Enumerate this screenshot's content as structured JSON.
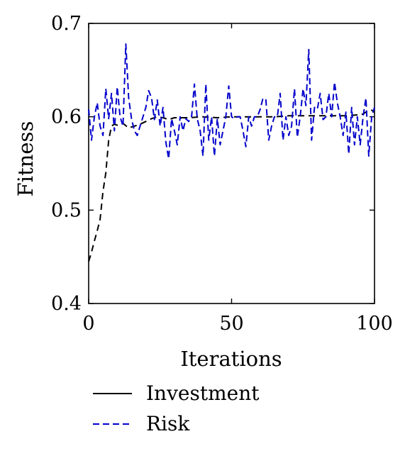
{
  "chart_data": {
    "type": "line",
    "xlabel": "Iterations",
    "ylabel": "Fitness",
    "xlim": [
      0,
      100
    ],
    "ylim": [
      0.4,
      0.7
    ],
    "xticks": [
      0,
      50,
      100
    ],
    "yticks": [
      0.4,
      0.5,
      0.6,
      0.7
    ],
    "xtick_labels": [
      "0",
      "50",
      "100"
    ],
    "ytick_labels": [
      "0.4",
      "0.5",
      "0.6",
      "0.7"
    ],
    "grid": false,
    "legend_position": "bottom",
    "series": [
      {
        "name": "Investment",
        "color": "#000000",
        "x": [
          0,
          1,
          2,
          3,
          4,
          5,
          6,
          7,
          8,
          9,
          10,
          12,
          14,
          16,
          18,
          20,
          22,
          24,
          26,
          28,
          30,
          35,
          40,
          45,
          50,
          55,
          60,
          65,
          70,
          75,
          80,
          85,
          90,
          94,
          95,
          96,
          97,
          98,
          99,
          100
        ],
        "y": [
          0.445,
          0.455,
          0.467,
          0.478,
          0.49,
          0.52,
          0.54,
          0.575,
          0.59,
          0.592,
          0.591,
          0.593,
          0.588,
          0.59,
          0.592,
          0.595,
          0.598,
          0.6,
          0.599,
          0.597,
          0.599,
          0.599,
          0.6,
          0.599,
          0.6,
          0.6,
          0.6,
          0.6,
          0.601,
          0.601,
          0.601,
          0.601,
          0.601,
          0.602,
          0.602,
          0.603,
          0.605,
          0.607,
          0.607,
          0.605
        ]
      },
      {
        "name": "Risk",
        "color": "#0000cc",
        "x": [
          0,
          1,
          2,
          3,
          4,
          5,
          6,
          7,
          8,
          9,
          10,
          11,
          12,
          13,
          14,
          15,
          16,
          17,
          18,
          19,
          20,
          21,
          22,
          23,
          24,
          25,
          26,
          27,
          28,
          29,
          30,
          31,
          32,
          33,
          34,
          35,
          36,
          37,
          38,
          39,
          40,
          41,
          42,
          43,
          44,
          45,
          46,
          47,
          48,
          49,
          50,
          51,
          52,
          53,
          54,
          55,
          56,
          57,
          58,
          59,
          60,
          61,
          62,
          63,
          64,
          65,
          66,
          67,
          68,
          69,
          70,
          71,
          72,
          73,
          74,
          75,
          76,
          77,
          78,
          79,
          80,
          81,
          82,
          83,
          84,
          85,
          86,
          87,
          88,
          89,
          90,
          91,
          92,
          93,
          94,
          95,
          96,
          97,
          98,
          99,
          100
        ],
        "y": [
          0.608,
          0.575,
          0.6,
          0.615,
          0.59,
          0.58,
          0.63,
          0.598,
          0.625,
          0.585,
          0.632,
          0.6,
          0.59,
          0.678,
          0.62,
          0.598,
          0.585,
          0.58,
          0.59,
          0.6,
          0.61,
          0.628,
          0.62,
          0.597,
          0.618,
          0.59,
          0.61,
          0.573,
          0.555,
          0.598,
          0.585,
          0.57,
          0.6,
          0.585,
          0.598,
          0.595,
          0.6,
          0.635,
          0.598,
          0.585,
          0.558,
          0.635,
          0.575,
          0.6,
          0.558,
          0.598,
          0.57,
          0.585,
          0.6,
          0.633,
          0.6,
          0.598,
          0.6,
          0.6,
          0.585,
          0.568,
          0.6,
          0.59,
          0.6,
          0.6,
          0.608,
          0.62,
          0.618,
          0.575,
          0.59,
          0.6,
          0.6,
          0.625,
          0.575,
          0.6,
          0.58,
          0.59,
          0.63,
          0.578,
          0.6,
          0.63,
          0.612,
          0.672,
          0.575,
          0.61,
          0.608,
          0.625,
          0.597,
          0.6,
          0.625,
          0.6,
          0.637,
          0.615,
          0.6,
          0.58,
          0.605,
          0.56,
          0.61,
          0.57,
          0.6,
          0.57,
          0.6,
          0.62,
          0.558,
          0.6,
          0.61
        ]
      }
    ]
  }
}
